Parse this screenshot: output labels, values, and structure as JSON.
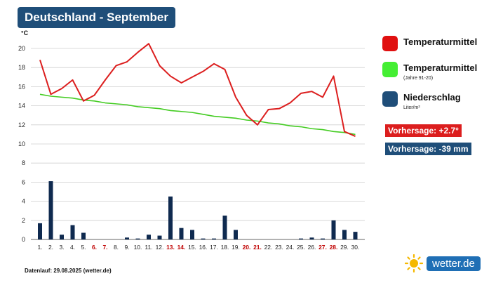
{
  "title": "Deutschland - September",
  "footer": "Datenlauf: 29.08.2025 (wetter.de)",
  "logo": "wetter.de",
  "legend": {
    "temp": "Temperaturmittel",
    "clim": "Temperaturmittel",
    "clim_sub": "(Jahre 91-20)",
    "rain": "Niederschlag",
    "rain_sub": "Liter/m²"
  },
  "forecast": {
    "temp": "Vorhersage: +2.7°",
    "rain": "Vorhersage: -39 mm"
  },
  "colors": {
    "title_bg": "#1f4e79",
    "temp": "#dc1e1e",
    "clim": "#44cc22",
    "rain": "#0f2a4f",
    "rain_legend": "#1f4e79",
    "weekend": "#c00000"
  },
  "chart_data": {
    "type": "line+bar",
    "y_unit": "°C",
    "y_ticks": [
      0,
      2,
      4,
      6,
      8,
      10,
      12,
      14,
      16,
      18,
      20
    ],
    "categories": [
      "1.",
      "2.",
      "3.",
      "4.",
      "5.",
      "6.",
      "7.",
      "8.",
      "9.",
      "10.",
      "11.",
      "12.",
      "13.",
      "14.",
      "15.",
      "16.",
      "17.",
      "18.",
      "19.",
      "20.",
      "21.",
      "22.",
      "23.",
      "24.",
      "25.",
      "26.",
      "27.",
      "28.",
      "29.",
      "30."
    ],
    "weekend_days": [
      "6.",
      "7.",
      "13.",
      "14.",
      "20.",
      "21.",
      "27.",
      "28."
    ],
    "series": [
      {
        "name": "Temperaturmittel",
        "type": "line",
        "values": [
          18.8,
          15.2,
          15.8,
          16.7,
          14.5,
          15.1,
          16.7,
          18.2,
          18.6,
          19.6,
          20.5,
          18.2,
          17.1,
          16.4,
          17.0,
          17.6,
          18.4,
          17.8,
          14.9,
          13.0,
          12.0,
          13.6,
          13.7,
          14.3,
          15.3,
          15.5,
          14.9,
          17.1,
          11.3,
          10.8
        ]
      },
      {
        "name": "Temperaturmittel (Jahre 91-20)",
        "type": "line",
        "values": [
          15.2,
          15.0,
          14.9,
          14.8,
          14.6,
          14.5,
          14.3,
          14.2,
          14.1,
          13.9,
          13.8,
          13.7,
          13.5,
          13.4,
          13.3,
          13.1,
          12.9,
          12.8,
          12.7,
          12.5,
          12.4,
          12.2,
          12.1,
          11.9,
          11.8,
          11.6,
          11.5,
          11.3,
          11.2,
          11.0
        ]
      },
      {
        "name": "Niederschlag",
        "type": "bar",
        "values": [
          1.7,
          6.1,
          0.5,
          1.5,
          0.7,
          0,
          0,
          0,
          0.2,
          0.1,
          0.5,
          0.4,
          4.5,
          1.2,
          1.0,
          0.1,
          0.1,
          2.5,
          1.0,
          0,
          0,
          0,
          0,
          0,
          0.1,
          0.2,
          0.1,
          2.0,
          1.0,
          0.8
        ]
      }
    ]
  }
}
